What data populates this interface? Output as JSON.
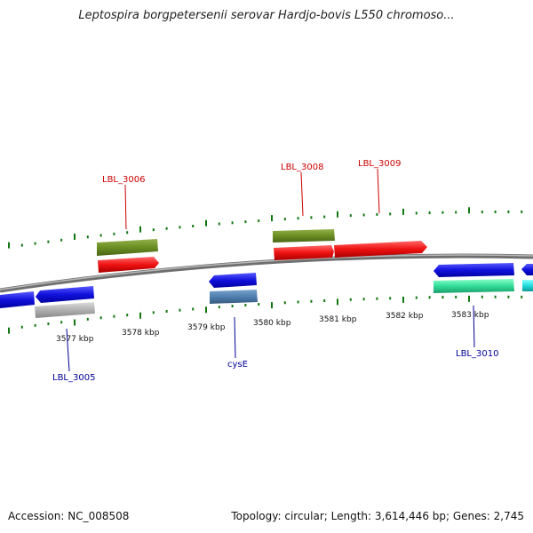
{
  "title": "Leptospira borgpetersenii serovar Hardjo-bovis L550 chromoso...",
  "footer": {
    "accession": "Accession: NC_008508",
    "topology": "Topology: circular; Length: 3,614,446 bp; Genes: 2,745"
  },
  "ticks": [
    "3577 kbp",
    "3578 kbp",
    "3579 kbp",
    "3580 kbp",
    "3581 kbp",
    "3582 kbp",
    "3583 kbp"
  ],
  "genes_forward": [
    {
      "name": "LBL_3006",
      "color": "#cc0000"
    },
    {
      "name": "LBL_3008",
      "color": "#cc0000"
    },
    {
      "name": "LBL_3009",
      "color": "#cc0000"
    }
  ],
  "genes_reverse": [
    {
      "name": "LBL_3005",
      "color": "#000099"
    },
    {
      "name": "cysE",
      "color": "#000099"
    },
    {
      "name": "LBL_3010",
      "color": "#000099"
    }
  ],
  "colors": {
    "backbone": "#888888",
    "forward_cds": "#ee1111",
    "reverse_cds": "#1111dd",
    "forward_gene": "#6b8e23",
    "reverse_gene_gray": "#b0b0b0",
    "reverse_gene_steel": "#4f7fb0",
    "reverse_gene_mint": "#33dd99",
    "reverse_gene_cyan": "#22dddd",
    "tick_green": "#117711"
  }
}
